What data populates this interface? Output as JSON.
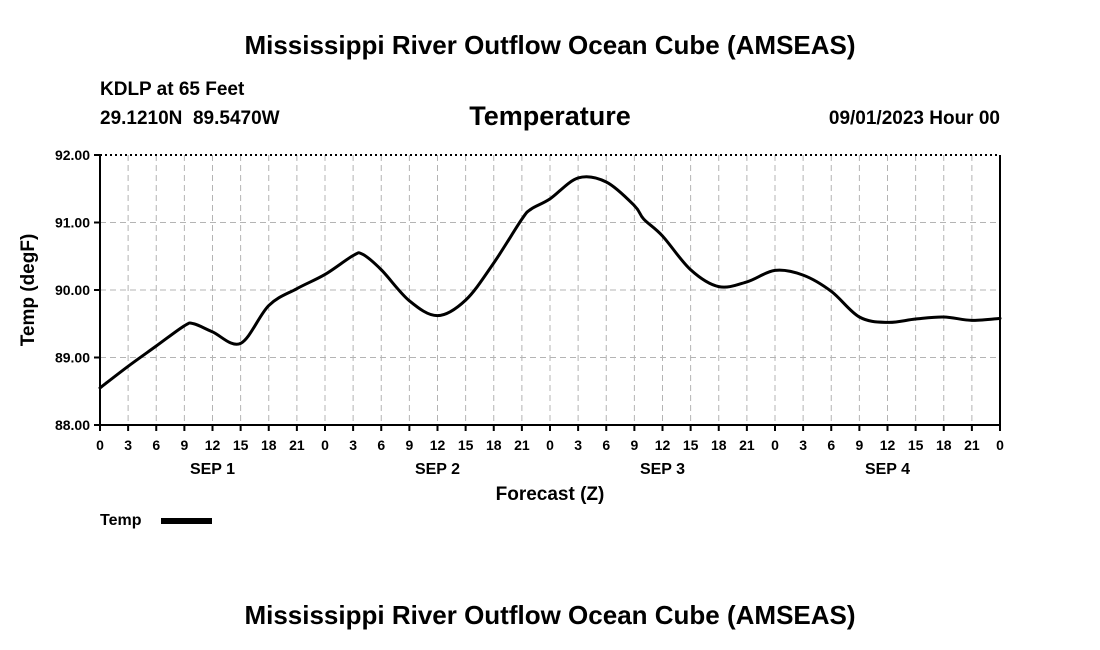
{
  "header": {
    "title": "Mississippi River Outflow Ocean Cube (AMSEAS)",
    "station": "KDLP at 65 Feet",
    "coords": "29.1210N  89.5470W",
    "parameter": "Temperature",
    "datetime": "09/01/2023 Hour 00"
  },
  "footer": {
    "title": "Mississippi River Outflow Ocean Cube (AMSEAS)"
  },
  "chart_data": {
    "type": "line",
    "title": "Temperature",
    "xlabel": "Forecast (Z)",
    "ylabel": "Temp (degF)",
    "ylim": [
      88.0,
      92.0
    ],
    "xlim": [
      0,
      96
    ],
    "yticks": [
      "88.00",
      "89.00",
      "90.00",
      "91.00",
      "92.00"
    ],
    "xtick_labels": [
      "0",
      "3",
      "6",
      "9",
      "12",
      "15",
      "18",
      "21",
      "0",
      "3",
      "6",
      "9",
      "12",
      "15",
      "18",
      "21",
      "0",
      "3",
      "6",
      "9",
      "12",
      "15",
      "18",
      "21",
      "0",
      "3",
      "6",
      "9",
      "12",
      "15",
      "18",
      "21",
      "0"
    ],
    "day_labels": [
      {
        "label": "SEP 1",
        "center_hour": 12
      },
      {
        "label": "SEP 2",
        "center_hour": 36
      },
      {
        "label": "SEP 3",
        "center_hour": 60
      },
      {
        "label": "SEP 4",
        "center_hour": 84
      }
    ],
    "grid": true,
    "legend": "bottom-left",
    "series": [
      {
        "name": "Temp",
        "x": [
          0,
          3,
          6,
          9,
          10,
          12,
          15,
          18,
          21,
          24,
          27,
          28,
          30,
          33,
          36,
          39,
          42,
          45,
          46,
          48,
          51,
          54,
          57,
          58,
          60,
          63,
          66,
          69,
          72,
          75,
          78,
          81,
          84,
          87,
          90,
          93,
          96
        ],
        "values": [
          88.55,
          88.87,
          89.17,
          89.47,
          89.5,
          89.38,
          89.21,
          89.77,
          90.02,
          90.23,
          90.51,
          90.53,
          90.3,
          89.84,
          89.62,
          89.85,
          90.4,
          91.05,
          91.2,
          91.35,
          91.66,
          91.6,
          91.25,
          91.05,
          90.8,
          90.3,
          90.05,
          90.12,
          90.29,
          90.22,
          89.98,
          89.6,
          89.52,
          89.57,
          89.6,
          89.55,
          89.58
        ]
      }
    ]
  }
}
